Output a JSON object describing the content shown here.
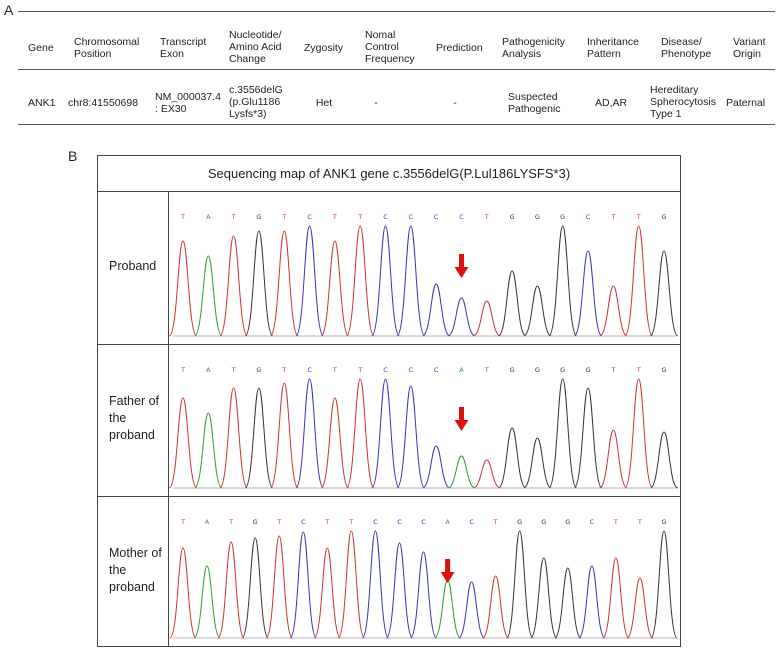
{
  "panel_a": {
    "label": "A",
    "headers": [
      "Gene",
      "Chromosomal Position",
      "Transcript Exon",
      "Nucleotide/ Amino Acid Change",
      "Zygosity",
      "Nomal Control Frequency",
      "Prediction",
      "Pathogenicity Analysis",
      "Inheritance Pattern",
      "Disease/ Phenotype",
      "Variant Origin"
    ],
    "row": [
      "ANK1",
      "chr8:41550698",
      "NM_000037.4 : EX30",
      "c.3556delG (p.Glu1186 Lysfs*3)",
      "Het",
      "-",
      "-",
      "Suspected Pathogenic",
      "AD,AR",
      "Hereditary Spherocytosis Type 1",
      "Paternal"
    ]
  },
  "panel_b": {
    "label": "B",
    "title": "Sequencing map of ANK1 gene c.3556delG(P.Lul186LYSFS*3)",
    "base_colors": {
      "T": "#cc3333",
      "A": "#2e9e2e",
      "G": "#333333",
      "C": "#3333bb"
    },
    "arrow_color": "#dd1111",
    "rows": [
      {
        "label": "Proband",
        "bases": [
          "T",
          "A",
          "T",
          "G",
          "T",
          "C",
          "T",
          "T",
          "C",
          "C",
          "C",
          "C",
          "T",
          "G",
          "G",
          "G",
          "C",
          "T",
          "T",
          "G"
        ],
        "arrow_index": 11
      },
      {
        "label": "Father of the proband",
        "bases": [
          "T",
          "A",
          "T",
          "G",
          "T",
          "C",
          "T",
          "T",
          "C",
          "C",
          "C",
          "A",
          "T",
          "G",
          "G",
          "G",
          "G",
          "T",
          "T",
          "G"
        ],
        "arrow_index": 11
      },
      {
        "label": "Mother of the proband",
        "bases": [
          "T",
          "A",
          "T",
          "G",
          "T",
          "C",
          "T",
          "T",
          "C",
          "C",
          "C",
          "A",
          "C",
          "T",
          "G",
          "G",
          "G",
          "C",
          "T",
          "T",
          "G"
        ],
        "arrow_index": 11
      }
    ]
  }
}
